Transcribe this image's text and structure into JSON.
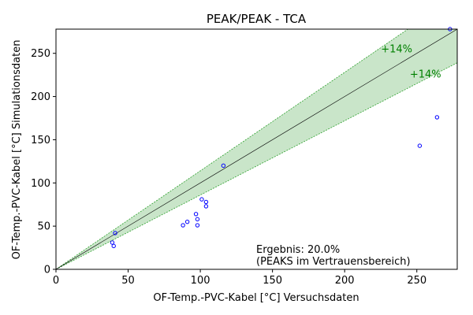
{
  "chart_data": {
    "type": "scatter",
    "title": "PEAK/PEAK - TCA",
    "xlabel": "OF-Temp.-PVC-Kabel [°C] Versuchsdaten",
    "ylabel": "OF-Temp.-PVC-Kabel [°C] Simulationsdaten",
    "xlim": [
      0,
      278
    ],
    "ylim": [
      0,
      278
    ],
    "xticks": [
      0,
      50,
      100,
      150,
      200,
      250
    ],
    "yticks": [
      0,
      50,
      100,
      150,
      200,
      250
    ],
    "grid": false,
    "reference_line": {
      "slope": 1
    },
    "band": {
      "upper_factor": 1.14,
      "lower_factor": 0.86,
      "upper_label": "+14%",
      "lower_label": "+14%",
      "fill_color": "#c9e5c9",
      "edge_color": "#2ca02c",
      "label_color": "#008000"
    },
    "marker_color": "#0000ff",
    "points": [
      {
        "x": 39,
        "y": 31
      },
      {
        "x": 40,
        "y": 27
      },
      {
        "x": 41,
        "y": 42
      },
      {
        "x": 88,
        "y": 51
      },
      {
        "x": 91,
        "y": 55
      },
      {
        "x": 97,
        "y": 64
      },
      {
        "x": 98,
        "y": 58
      },
      {
        "x": 98,
        "y": 51
      },
      {
        "x": 101,
        "y": 81
      },
      {
        "x": 104,
        "y": 78
      },
      {
        "x": 104,
        "y": 73
      },
      {
        "x": 116,
        "y": 120
      },
      {
        "x": 252,
        "y": 143
      },
      {
        "x": 264,
        "y": 176
      },
      {
        "x": 273,
        "y": 278
      }
    ],
    "annotation": {
      "line1": "Ergebnis: 20.0%",
      "line2": "(PEAKS im Vertrauensbereich)"
    }
  }
}
